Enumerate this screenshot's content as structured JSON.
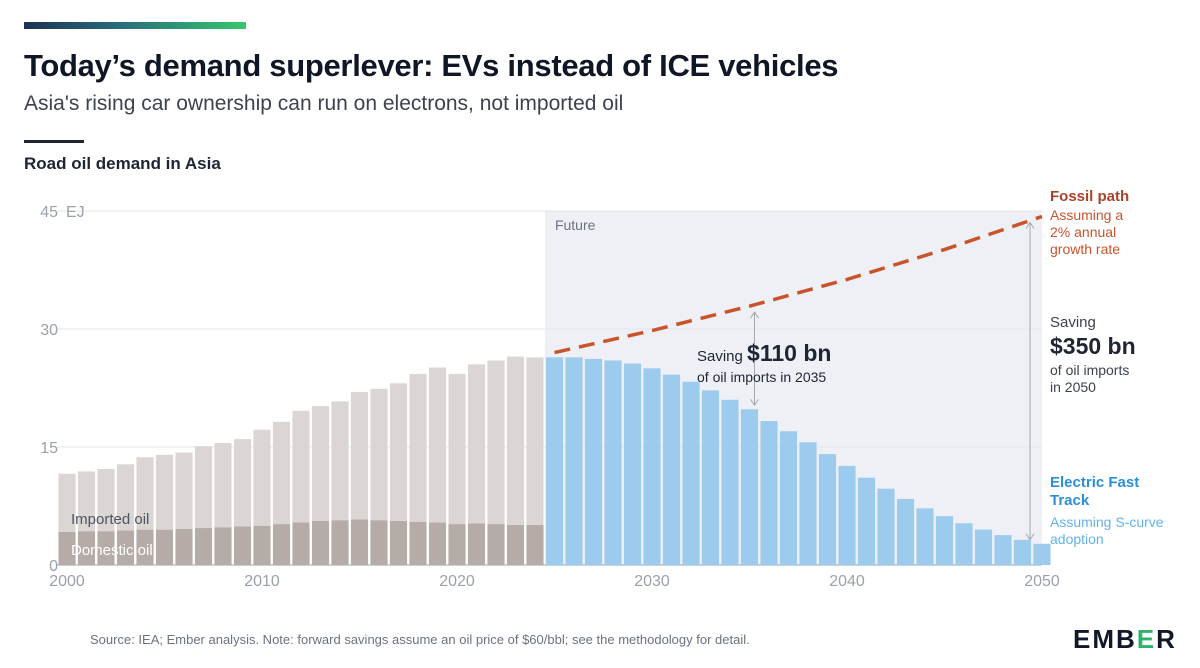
{
  "header": {
    "title": "Today’s demand superlever: EVs instead of ICE vehicles",
    "subtitle": "Asia's rising car ownership can run on electrons, not imported oil",
    "section_label": "Road oil demand in Asia"
  },
  "footer": {
    "source": "Source: IEA; Ember analysis. Note: forward savings assume an oil price of $60/bbl; see the methodology for detail.",
    "logo": "EMBER"
  },
  "colors": {
    "imported_oil": "#dbd6d3",
    "domestic_oil": "#b5aca8",
    "electric_fast_track": "#9ccbee",
    "fossil_path": "#c9542b",
    "future_shade": "#eef0f6",
    "accent_green": "#2fb36a",
    "label_blue": "#2b8fd6",
    "label_blue_light": "#63b3e6"
  },
  "chart_data": {
    "type": "bar",
    "title": "Road oil demand in Asia",
    "y_unit": "EJ",
    "ylim": [
      0,
      45
    ],
    "yticks": [
      "0",
      "15",
      "30",
      "45"
    ],
    "xticks": [
      "2000",
      "2010",
      "2020",
      "2030",
      "2040",
      "2050"
    ],
    "xlim": [
      2000,
      2050
    ],
    "grid": true,
    "future_label": "Future",
    "future_start": 2025,
    "historical": {
      "years": [
        2000,
        2001,
        2002,
        2003,
        2004,
        2005,
        2006,
        2007,
        2008,
        2009,
        2010,
        2011,
        2012,
        2013,
        2014,
        2015,
        2016,
        2017,
        2018,
        2019,
        2020,
        2021,
        2022,
        2023,
        2024
      ],
      "domestic": [
        4.2,
        4.3,
        4.3,
        4.4,
        4.5,
        4.5,
        4.6,
        4.7,
        4.8,
        4.9,
        5.0,
        5.2,
        5.4,
        5.6,
        5.7,
        5.8,
        5.7,
        5.6,
        5.5,
        5.4,
        5.2,
        5.3,
        5.2,
        5.1,
        5.1
      ],
      "imported": [
        7.4,
        7.6,
        7.9,
        8.4,
        9.2,
        9.5,
        9.7,
        10.4,
        10.7,
        11.1,
        12.2,
        13.0,
        14.2,
        14.6,
        15.1,
        16.2,
        16.7,
        17.5,
        18.8,
        19.7,
        19.1,
        20.2,
        20.8,
        21.4,
        21.3
      ],
      "series_labels": {
        "imported": "Imported oil",
        "domestic": "Domestic oil"
      }
    },
    "electric_fast_track": {
      "years": [
        2025,
        2026,
        2027,
        2028,
        2029,
        2030,
        2031,
        2032,
        2033,
        2034,
        2035,
        2036,
        2037,
        2038,
        2039,
        2040,
        2041,
        2042,
        2043,
        2044,
        2045,
        2046,
        2047,
        2048,
        2049,
        2050
      ],
      "values": [
        26.4,
        26.4,
        26.2,
        26.0,
        25.6,
        25.0,
        24.2,
        23.3,
        22.2,
        21.0,
        19.8,
        18.3,
        17.0,
        15.6,
        14.1,
        12.6,
        11.1,
        9.7,
        8.4,
        7.2,
        6.2,
        5.3,
        4.5,
        3.8,
        3.2,
        2.7
      ],
      "label": "Electric Fast Track",
      "sublabel": "Assuming S-curve adoption"
    },
    "fossil_path": {
      "x": [
        2025,
        2030,
        2035,
        2040,
        2045,
        2050
      ],
      "y": [
        27.0,
        29.8,
        32.9,
        36.3,
        40.1,
        44.3
      ],
      "label": "Fossil path",
      "sublabel": "Assuming a 2% annual growth rate"
    },
    "annotations": {
      "saving_2035": {
        "prefix": "Saving",
        "amount": "$110 bn",
        "suffix": "of oil imports in 2035"
      },
      "saving_2050": {
        "prefix": "Saving",
        "amount": "$350 bn",
        "line1": "of oil imports",
        "line2": "in 2050"
      }
    }
  }
}
